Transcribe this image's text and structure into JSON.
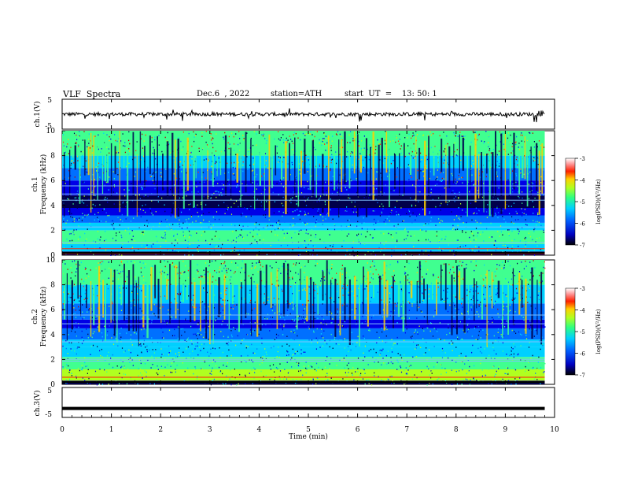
{
  "header": {
    "title": "VLF  Spectra",
    "date": "Dec.6  , 2022",
    "station": "station=ATH",
    "start": "start  UT  =    13: 50: 1"
  },
  "colors": {
    "colormap": [
      "#00004a",
      "#0000e6",
      "#0070ff",
      "#00d0ff",
      "#40ff90",
      "#b0ff20",
      "#ffd000",
      "#ff3000",
      "#b80000",
      "#ffa0a0"
    ]
  },
  "chart_data": [
    {
      "type": "line",
      "panel": "ch1-waveform",
      "ylabel": "ch.1(V)",
      "ylim": [
        -5,
        5
      ],
      "yticks": [
        "5",
        "-5"
      ],
      "xlim": [
        0,
        10
      ],
      "data_range_min": [
        0,
        9.8
      ],
      "series": [
        {
          "approx_level_v": 0.0,
          "noise_amplitude_v": 1.2
        }
      ]
    },
    {
      "type": "heatmap",
      "panel": "ch1-spectrogram",
      "ylabel": "ch.1 Frequency  (kHz)",
      "ylim": [
        0,
        10
      ],
      "yticks": [
        "0",
        "2",
        "4",
        "6",
        "8",
        "10"
      ],
      "xlim": [
        0,
        10
      ],
      "colorbar": {
        "label": "log(PSD)(V²/Hz)",
        "range": [
          -7,
          -3
        ],
        "ticks": [
          "-3",
          "-4",
          "-5",
          "-6",
          "-7"
        ]
      }
    },
    {
      "type": "heatmap",
      "panel": "ch2-spectrogram",
      "ylabel": "ch.2 Frequency  (kHz)",
      "ylim": [
        0,
        10
      ],
      "yticks": [
        "0",
        "2",
        "4",
        "6",
        "8",
        "10"
      ],
      "xlim": [
        0,
        10
      ],
      "colorbar": {
        "label": "log(PSD)(V²/Hz)",
        "range": [
          -7,
          -3
        ],
        "ticks": [
          "-3",
          "-4",
          "-5",
          "-6",
          "-7"
        ]
      }
    },
    {
      "type": "line",
      "panel": "ch3-waveform",
      "ylabel": "ch.3(V)",
      "ylim": [
        -5,
        5
      ],
      "yticks": [
        "5",
        "-5"
      ],
      "xlim": [
        0,
        10
      ],
      "series": [
        {
          "approx_level_v": -2.0
        }
      ]
    }
  ],
  "xaxis": {
    "label": "Time  (min)",
    "ticks": [
      "0",
      "1",
      "2",
      "3",
      "4",
      "5",
      "6",
      "7",
      "8",
      "9",
      "10"
    ]
  }
}
